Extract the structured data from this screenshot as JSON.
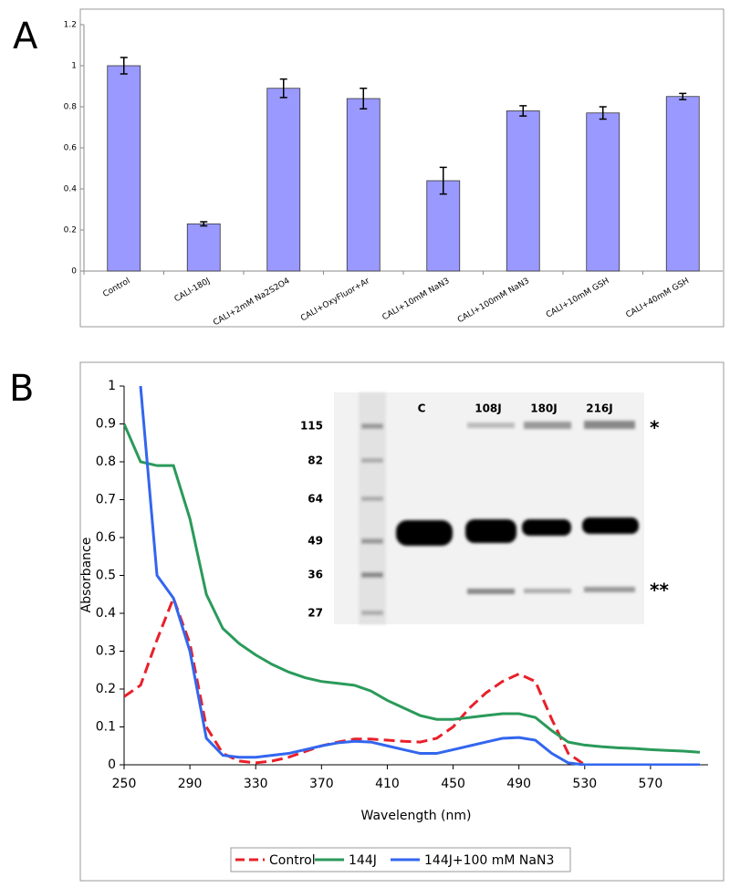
{
  "chart_data": [
    {
      "type": "bar",
      "panel": "A",
      "categories": [
        "Control",
        "CALI-180J",
        "CALI+2mM Na2S2O4",
        "CALI+OxyFluor+Ar",
        "CALI+10mM NaN3",
        "CALI+100mM NaN3",
        "CALI+10mM GSH",
        "CALI+40mM GSH"
      ],
      "values": [
        1.0,
        0.23,
        0.89,
        0.84,
        0.44,
        0.78,
        0.77,
        0.85
      ],
      "errors": [
        0.04,
        0.01,
        0.045,
        0.05,
        0.065,
        0.025,
        0.03,
        0.015
      ],
      "color": "#9999ff",
      "ylim": [
        0,
        1.2
      ],
      "yticks": [
        0,
        0.2,
        0.4,
        0.6,
        0.8,
        1,
        1.2
      ]
    },
    {
      "type": "line",
      "panel": "B",
      "xlabel": "Wavelength (nm)",
      "ylabel": "Absorbance",
      "x": [
        250,
        260,
        270,
        280,
        290,
        300,
        310,
        320,
        330,
        340,
        350,
        360,
        370,
        380,
        390,
        400,
        410,
        420,
        430,
        440,
        450,
        460,
        470,
        480,
        490,
        500,
        510,
        520,
        530,
        540,
        550,
        560,
        570,
        580,
        590,
        600
      ],
      "series": [
        {
          "name": "Control",
          "color": "#e8202a",
          "dash": true,
          "values": [
            0.18,
            0.21,
            0.33,
            0.44,
            0.32,
            0.1,
            0.03,
            0.01,
            0.005,
            0.01,
            0.02,
            0.035,
            0.05,
            0.06,
            0.068,
            0.068,
            0.065,
            0.062,
            0.06,
            0.07,
            0.1,
            0.15,
            0.19,
            0.22,
            0.24,
            0.22,
            0.12,
            0.03,
            0,
            0,
            0,
            0,
            0,
            0,
            0,
            0
          ]
        },
        {
          "name": "144J",
          "color": "#2a9a5a",
          "dash": false,
          "values": [
            0.9,
            0.8,
            0.79,
            0.79,
            0.65,
            0.45,
            0.36,
            0.32,
            0.29,
            0.265,
            0.245,
            0.23,
            0.22,
            0.215,
            0.21,
            0.195,
            0.17,
            0.15,
            0.13,
            0.12,
            0.12,
            0.125,
            0.13,
            0.135,
            0.135,
            0.125,
            0.09,
            0.06,
            0.052,
            0.048,
            0.045,
            0.043,
            0.04,
            0.038,
            0.036,
            0.033
          ]
        },
        {
          "name": "144J+100 mM NaN3",
          "color": "#3366ee",
          "dash": false,
          "values": [
            null,
            1.0,
            0.5,
            0.44,
            0.3,
            0.07,
            0.025,
            0.02,
            0.02,
            0.025,
            0.03,
            0.04,
            0.05,
            0.058,
            0.062,
            0.06,
            0.05,
            0.04,
            0.03,
            0.03,
            0.04,
            0.05,
            0.06,
            0.07,
            0.072,
            0.065,
            0.03,
            0.005,
            0,
            0,
            0,
            0,
            0,
            0,
            0,
            0
          ]
        }
      ],
      "xlim": [
        250,
        605
      ],
      "ylim": [
        0,
        1
      ],
      "xticks": [
        250,
        290,
        330,
        370,
        410,
        450,
        490,
        530,
        570
      ],
      "yticks": [
        0,
        0.1,
        0.2,
        0.3,
        0.4,
        0.5,
        0.6,
        0.7,
        0.8,
        0.9,
        1
      ],
      "legend": "bottom",
      "inset": {
        "lanes": [
          "C",
          "108J",
          "180J",
          "216J"
        ],
        "markers": [
          "115",
          "82",
          "64",
          "49",
          "36",
          "27"
        ],
        "marks": [
          "*",
          "**"
        ]
      }
    }
  ]
}
